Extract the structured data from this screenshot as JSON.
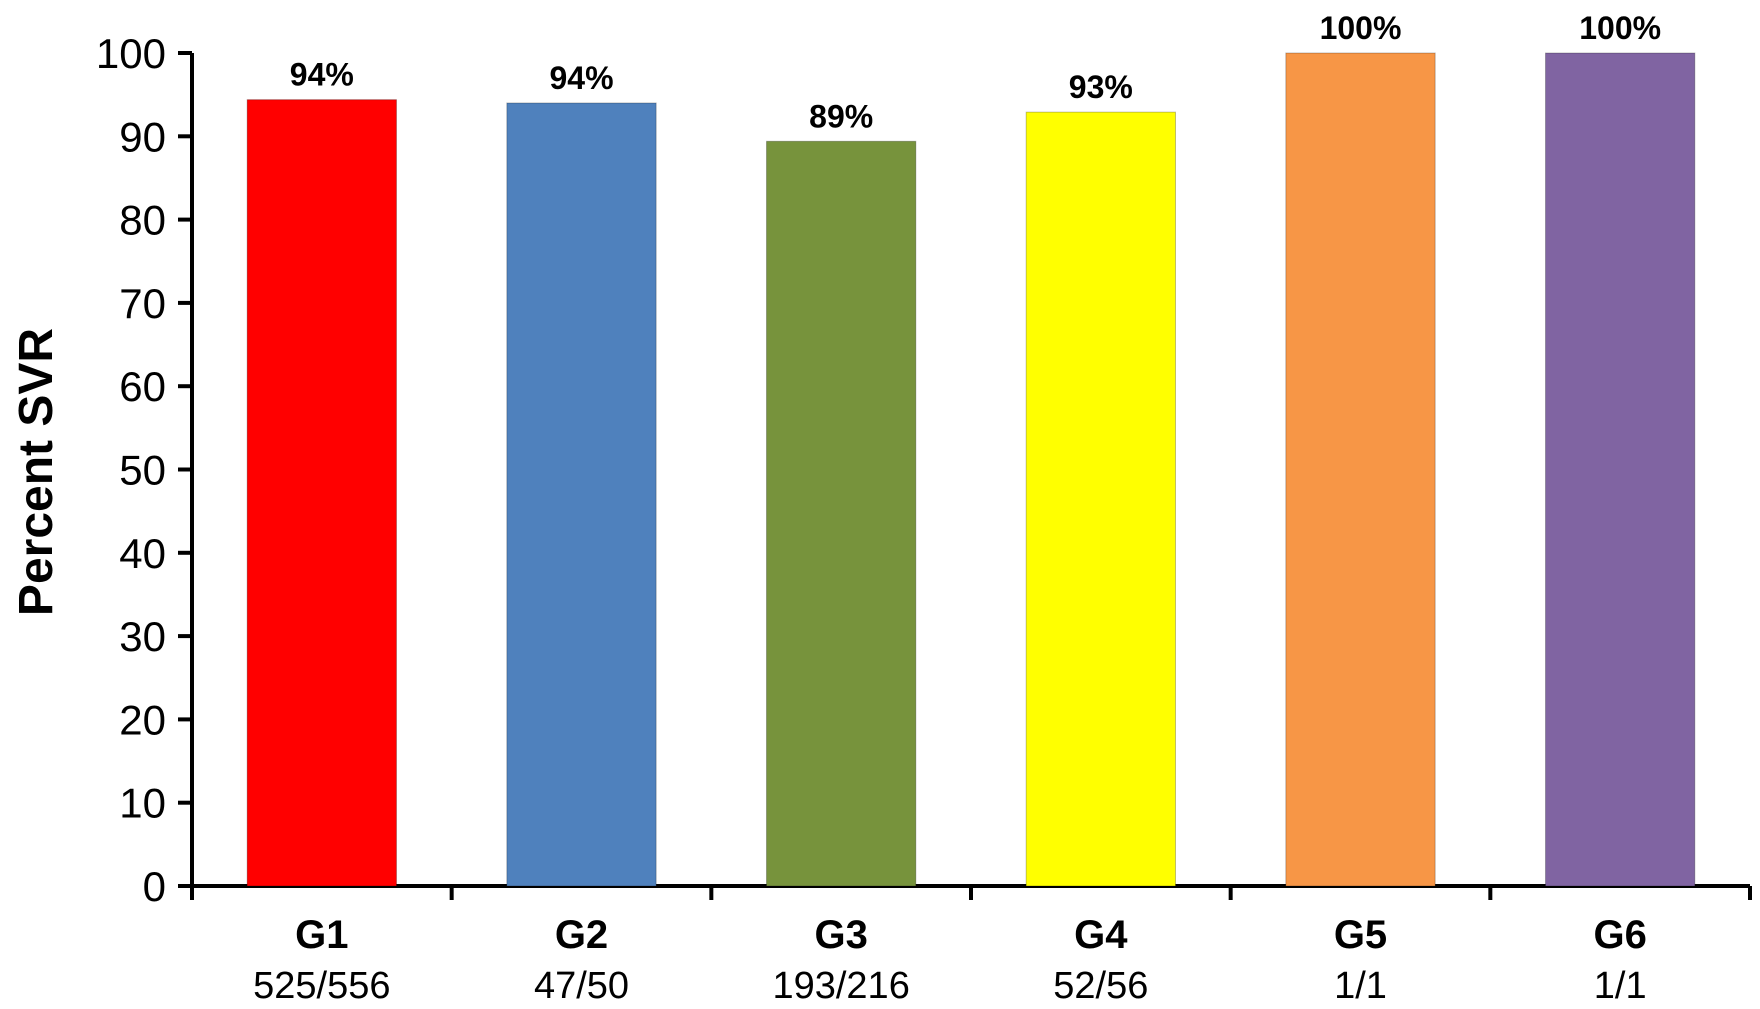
{
  "chart_data": {
    "type": "bar",
    "categories": [
      "G1",
      "G2",
      "G3",
      "G4",
      "G5",
      "G6"
    ],
    "subcategories": [
      "525/556",
      "47/50",
      "193/216",
      "52/56",
      "1/1",
      "1/1"
    ],
    "values": [
      94.4,
      94,
      89.4,
      92.9,
      100,
      100
    ],
    "data_labels": [
      "94%",
      "94%",
      "89%",
      "93%",
      "100%",
      "100%"
    ],
    "colors": [
      "#FF0000",
      "#4F81BD",
      "#77933C",
      "#FFFF00",
      "#F79646",
      "#8064A2"
    ],
    "ylabel": "Percent SVR",
    "xlabel": "",
    "title": "",
    "ylim": [
      0,
      100
    ],
    "yticks": [
      0,
      10,
      20,
      30,
      40,
      50,
      60,
      70,
      80,
      90,
      100
    ],
    "grid": false,
    "legend": "none"
  }
}
